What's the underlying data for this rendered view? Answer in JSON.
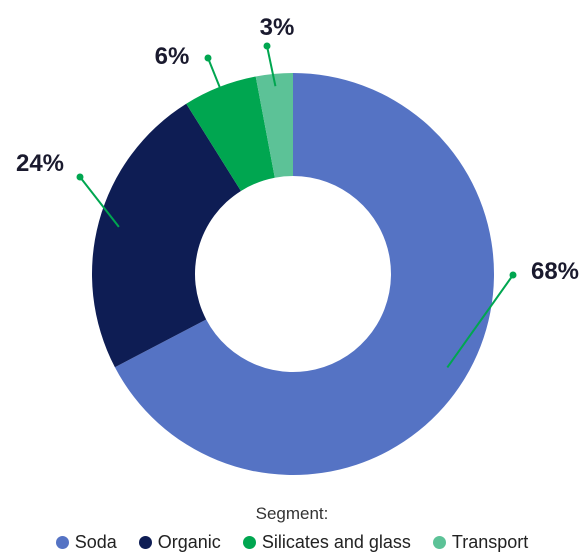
{
  "chart_data": {
    "type": "pie",
    "donut": true,
    "legend_title": "Segment:",
    "legend_position": "bottom",
    "categories": [
      "Soda",
      "Organic",
      "Silicates and glass",
      "Transport"
    ],
    "values": [
      68,
      24,
      6,
      3
    ],
    "labels": [
      "68%",
      "24%",
      "6%",
      "3%"
    ],
    "colors": [
      "#5573c4",
      "#0e1d54",
      "#00a650",
      "#5cc297"
    ],
    "leader_color": "#00a650"
  }
}
